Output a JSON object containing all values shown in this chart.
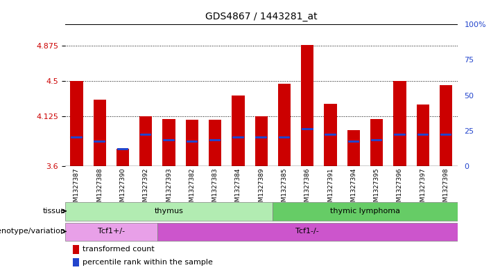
{
  "title": "GDS4867 / 1443281_at",
  "samples": [
    "GSM1327387",
    "GSM1327388",
    "GSM1327390",
    "GSM1327392",
    "GSM1327393",
    "GSM1327382",
    "GSM1327383",
    "GSM1327384",
    "GSM1327389",
    "GSM1327385",
    "GSM1327386",
    "GSM1327391",
    "GSM1327394",
    "GSM1327395",
    "GSM1327396",
    "GSM1327397",
    "GSM1327398"
  ],
  "red_values": [
    4.5,
    4.3,
    3.78,
    4.125,
    4.1,
    4.09,
    4.09,
    4.35,
    4.125,
    4.47,
    4.88,
    4.26,
    3.98,
    4.1,
    4.5,
    4.25,
    4.46
  ],
  "blue_values": [
    20,
    17,
    12,
    22,
    18,
    17,
    18,
    20,
    20,
    20,
    26,
    22,
    17,
    18,
    22,
    22,
    22
  ],
  "ymin": 3.6,
  "ymax": 5.1,
  "yticks_left": [
    3.6,
    4.125,
    4.5,
    4.875
  ],
  "yticks_right": [
    0,
    25,
    50,
    75,
    100
  ],
  "hlines": [
    4.125,
    4.5,
    4.875
  ],
  "tissue_groups": [
    {
      "label": "thymus",
      "start": 0,
      "end": 9,
      "color": "#b2ecb2"
    },
    {
      "label": "thymic lymphoma",
      "start": 9,
      "end": 17,
      "color": "#66cc66"
    }
  ],
  "genotype_groups": [
    {
      "label": "Tcf1+/-",
      "start": 0,
      "end": 4,
      "color": "#e8a0e8"
    },
    {
      "label": "Tcf1-/-",
      "start": 4,
      "end": 17,
      "color": "#cc55cc"
    }
  ],
  "bar_color": "#cc0000",
  "blue_color": "#2244cc",
  "tick_color_left": "#cc0000",
  "tick_color_right": "#2244cc",
  "legend_items": [
    "transformed count",
    "percentile rank within the sample"
  ]
}
